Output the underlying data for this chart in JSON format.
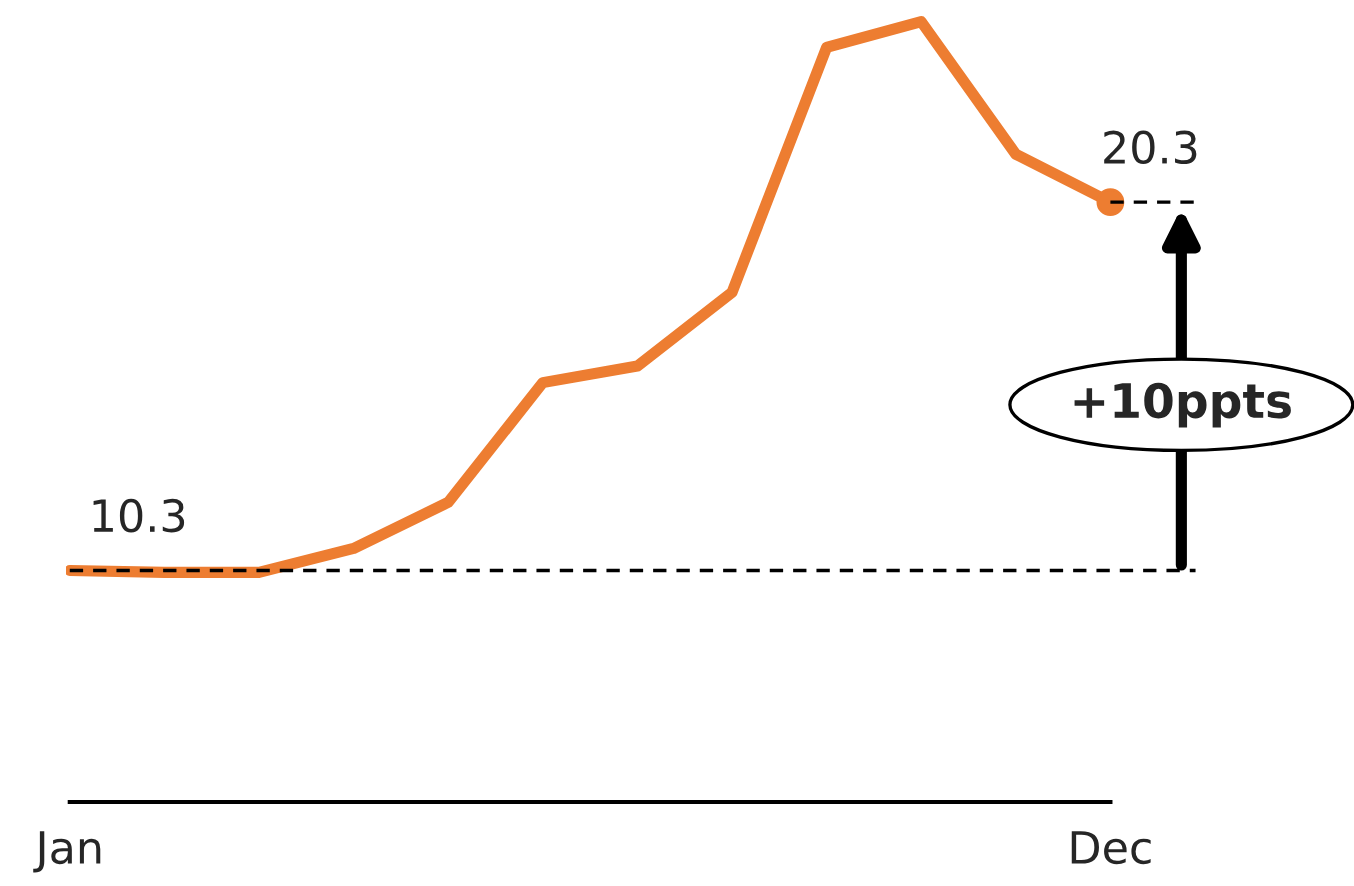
{
  "chart_data": {
    "type": "line",
    "categories": [
      "Jan",
      null,
      null,
      null,
      null,
      null,
      null,
      null,
      null,
      null,
      null,
      "Dec"
    ],
    "series": [
      {
        "color": "#ed7d31",
        "values": [
          10.3,
          10.25,
          10.25,
          10.9,
          12.15,
          15.4,
          15.85,
          17.85,
          24.5,
          25.2,
          21.6,
          20.3
        ],
        "value_labels": [
          "10.3",
          null,
          null,
          null,
          null,
          null,
          null,
          null,
          null,
          null,
          null,
          "20.3"
        ]
      }
    ],
    "tick_labels": "x",
    "grid": false,
    "marker": "none",
    "line_style": "solid",
    "ref_lines": [
      {
        "axis": "y",
        "value": 10.3,
        "color": "#000000",
        "line_style": "dashed"
      }
    ],
    "annotations": [
      "+10ppts"
    ]
  }
}
